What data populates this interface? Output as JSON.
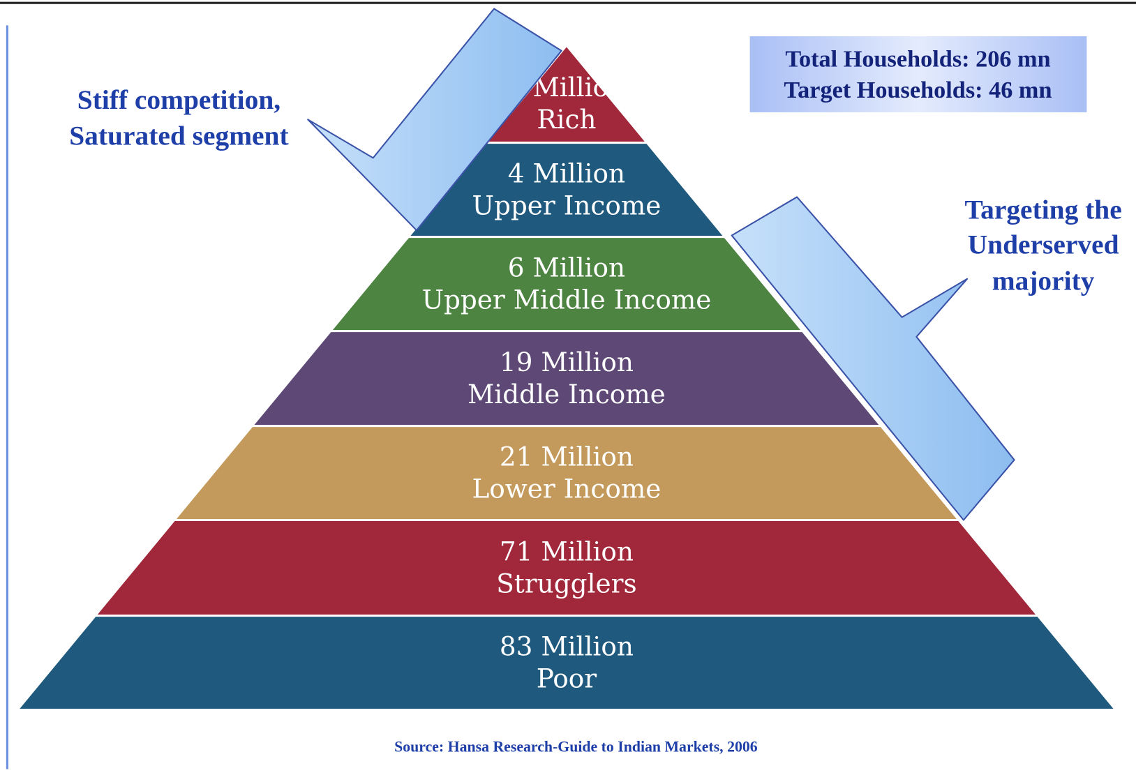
{
  "levels": [
    {
      "amount": "2 Million",
      "label": "Rich",
      "color": "#a0283a"
    },
    {
      "amount": "4 Million",
      "label": "Upper Income",
      "color": "#1f5a7e"
    },
    {
      "amount": "6 Million",
      "label": "Upper Middle Income",
      "color": "#4e8442"
    },
    {
      "amount": "19 Million",
      "label": "Middle Income",
      "color": "#5e4876"
    },
    {
      "amount": "21 Million",
      "label": "Lower Income",
      "color": "#c39a5c"
    },
    {
      "amount": "71 Million",
      "label": "Strugglers",
      "color": "#a0283a"
    },
    {
      "amount": "83 Million",
      "label": "Poor",
      "color": "#1f5a7e"
    }
  ],
  "callouts": [
    {
      "lines": [
        "Stiff competition,",
        "Saturated segment"
      ]
    },
    {
      "lines": [
        "Targeting the",
        "Underserved",
        "majority"
      ]
    }
  ],
  "info_box": {
    "lines": [
      "Total Households: 206 mn",
      "Target Households: 46 mn"
    ]
  },
  "source": "Source: Hansa Research-Guide to Indian Markets, 2006"
}
